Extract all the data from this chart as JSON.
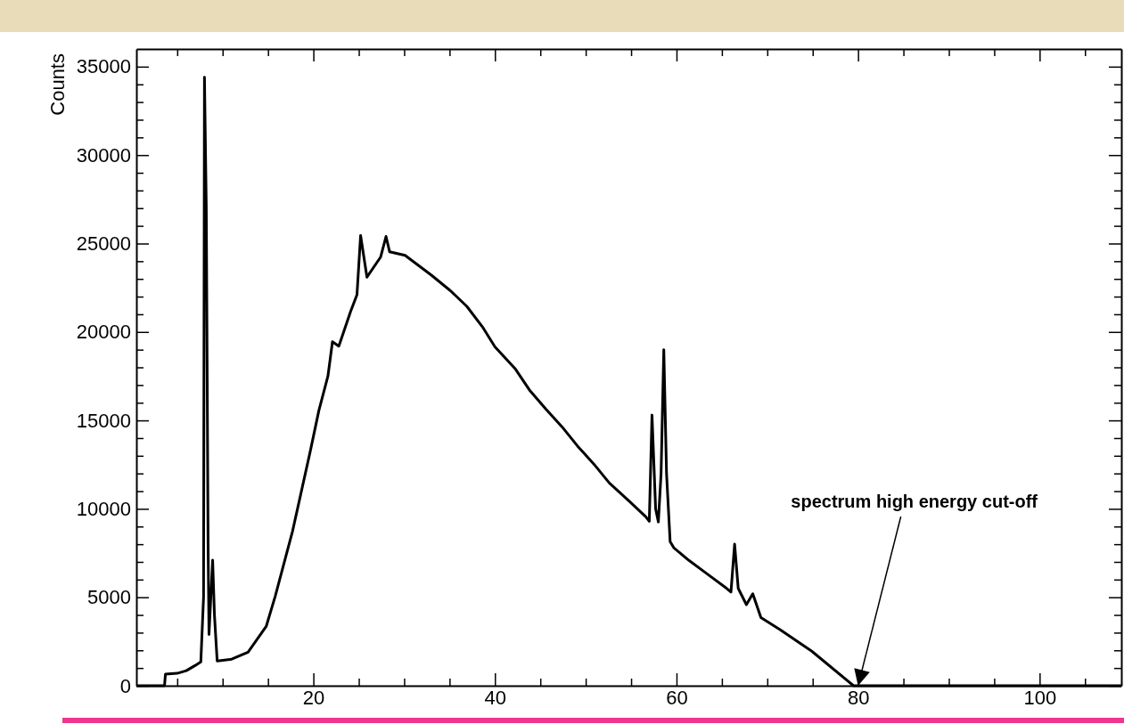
{
  "chart_data": {
    "type": "line",
    "ylabel": "Counts",
    "xlim": [
      0.5,
      109
    ],
    "ylim": [
      0,
      36000
    ],
    "xticks": [
      {
        "value": 5,
        "label": null
      },
      {
        "value": 10,
        "label": null
      },
      {
        "value": 15,
        "label": null
      },
      20,
      {
        "value": 25,
        "label": null
      },
      {
        "value": 30,
        "label": null
      },
      {
        "value": 35,
        "label": null
      },
      40,
      {
        "value": 45,
        "label": null
      },
      {
        "value": 50,
        "label": null
      },
      {
        "value": 55,
        "label": null
      },
      60,
      {
        "value": 65,
        "label": null
      },
      {
        "value": 70,
        "label": null
      },
      {
        "value": 75,
        "label": null
      },
      80,
      {
        "value": 85,
        "label": null
      },
      {
        "value": 90,
        "label": null
      },
      {
        "value": 95,
        "label": null
      },
      100,
      {
        "value": 105,
        "label": null
      }
    ],
    "yticks": [
      0,
      {
        "value": 1000,
        "label": null
      },
      {
        "value": 2000,
        "label": null
      },
      {
        "value": 3000,
        "label": null
      },
      {
        "value": 4000,
        "label": null
      },
      5000,
      {
        "value": 6000,
        "label": null
      },
      {
        "value": 7000,
        "label": null
      },
      {
        "value": 8000,
        "label": null
      },
      {
        "value": 9000,
        "label": null
      },
      10000,
      {
        "value": 11000,
        "label": null
      },
      {
        "value": 12000,
        "label": null
      },
      {
        "value": 13000,
        "label": null
      },
      {
        "value": 14000,
        "label": null
      },
      15000,
      {
        "value": 16000,
        "label": null
      },
      {
        "value": 17000,
        "label": null
      },
      {
        "value": 18000,
        "label": null
      },
      {
        "value": 19000,
        "label": null
      },
      20000,
      {
        "value": 21000,
        "label": null
      },
      {
        "value": 22000,
        "label": null
      },
      {
        "value": 23000,
        "label": null
      },
      {
        "value": 24000,
        "label": null
      },
      25000,
      {
        "value": 26000,
        "label": null
      },
      {
        "value": 27000,
        "label": null
      },
      {
        "value": 28000,
        "label": null
      },
      {
        "value": 29000,
        "label": null
      },
      30000,
      {
        "value": 31000,
        "label": null
      },
      {
        "value": 32000,
        "label": null
      },
      {
        "value": 33000,
        "label": null
      },
      {
        "value": 34000,
        "label": null
      },
      35000
    ],
    "grid": false,
    "marker": "none",
    "line_style": "solid",
    "annotations": [
      {
        "text": "spectrum high energy cut-off",
        "x": 80,
        "y": 0
      }
    ],
    "series": [
      {
        "color": "#000000",
        "x": [
          0.5,
          3.6,
          3.7,
          5,
          6,
          7,
          7.6,
          7.9,
          8.0,
          8.2,
          8.4,
          8.5,
          8.9,
          9.1,
          9.4,
          11,
          12.8,
          14.8,
          15.8,
          17.7,
          19.7,
          20.6,
          21.6,
          22.1,
          22.8,
          24.1,
          24.8,
          25.2,
          25.9,
          27.4,
          28.0,
          28.4,
          30.1,
          33,
          35.1,
          36.9,
          38.7,
          40,
          42.2,
          43.8,
          45.6,
          47.4,
          49.1,
          50.9,
          52.6,
          54.8,
          56.6,
          57.0,
          57.3,
          57.7,
          58.0,
          58.3,
          58.6,
          58.9,
          59.3,
          59.7,
          61.4,
          63.2,
          65.5,
          66.0,
          66.4,
          66.8,
          67.7,
          68.4,
          69.3,
          71.4,
          74.9,
          79.5,
          109
        ],
        "values": [
          0,
          0,
          650,
          700,
          850,
          1150,
          1350,
          5000,
          34400,
          27000,
          8000,
          2900,
          7100,
          4000,
          1400,
          1500,
          1900,
          3350,
          5070,
          8730,
          13360,
          15550,
          17500,
          19450,
          19200,
          21160,
          22100,
          25450,
          23100,
          24230,
          25400,
          24530,
          24330,
          23210,
          22330,
          21450,
          20230,
          19160,
          17940,
          16720,
          15650,
          14630,
          13550,
          12530,
          11460,
          10430,
          9560,
          9300,
          15300,
          10000,
          9260,
          12000,
          19000,
          12000,
          8140,
          7800,
          7070,
          6390,
          5510,
          5300,
          8000,
          5500,
          4580,
          5200,
          3850,
          3170,
          1950,
          0,
          0
        ]
      }
    ]
  }
}
